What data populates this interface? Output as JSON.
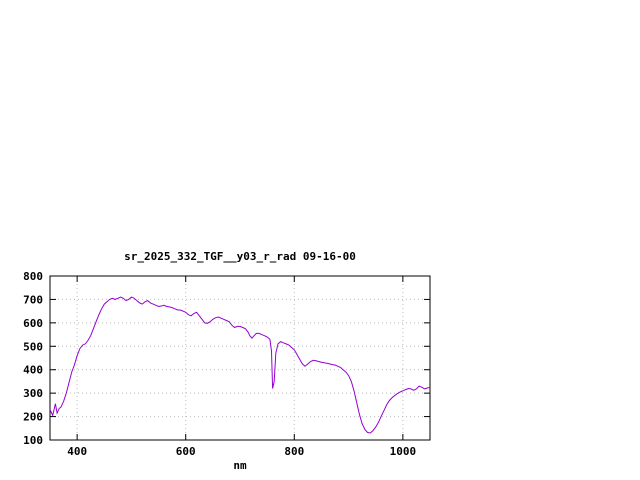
{
  "window": {
    "background": "#ffffff"
  },
  "chart_data": {
    "type": "line",
    "title": "sr_2025_332_TGF__y03_r_rad 09-16-00",
    "xlabel": "nm",
    "ylabel": "",
    "xlim": [
      350,
      1050
    ],
    "ylim": [
      100,
      800
    ],
    "xticks": [
      400,
      600,
      800,
      1000
    ],
    "yticks": [
      100,
      200,
      300,
      400,
      500,
      600,
      700,
      800
    ],
    "grid": true,
    "legend": "none",
    "axis_color": "#000000",
    "grid_color": "#bbbbbb",
    "series": [
      {
        "name": "",
        "color": "#9400d3",
        "x": [
          350,
          355,
          360,
          363,
          367,
          370,
          375,
          380,
          385,
          390,
          395,
          400,
          405,
          410,
          415,
          420,
          425,
          430,
          435,
          440,
          445,
          450,
          455,
          460,
          465,
          470,
          475,
          480,
          485,
          490,
          495,
          500,
          505,
          510,
          515,
          520,
          525,
          530,
          535,
          540,
          545,
          550,
          555,
          560,
          565,
          570,
          575,
          580,
          585,
          590,
          595,
          600,
          605,
          610,
          615,
          620,
          625,
          630,
          635,
          640,
          645,
          650,
          655,
          660,
          665,
          670,
          675,
          680,
          685,
          690,
          695,
          700,
          705,
          710,
          715,
          718,
          722,
          726,
          730,
          735,
          740,
          745,
          750,
          755,
          758,
          760,
          763,
          766,
          770,
          775,
          780,
          785,
          790,
          795,
          800,
          805,
          810,
          815,
          820,
          825,
          830,
          835,
          840,
          845,
          850,
          855,
          860,
          865,
          870,
          875,
          880,
          885,
          890,
          895,
          900,
          905,
          910,
          915,
          920,
          925,
          930,
          935,
          940,
          945,
          950,
          955,
          960,
          965,
          970,
          975,
          980,
          985,
          990,
          995,
          1000,
          1005,
          1010,
          1015,
          1020,
          1025,
          1030,
          1035,
          1040,
          1045,
          1050
        ],
        "y": [
          230,
          205,
          255,
          215,
          235,
          240,
          265,
          300,
          345,
          390,
          420,
          460,
          490,
          505,
          510,
          525,
          545,
          575,
          605,
          635,
          660,
          680,
          690,
          700,
          705,
          700,
          705,
          710,
          705,
          695,
          700,
          710,
          705,
          695,
          685,
          680,
          690,
          695,
          685,
          680,
          675,
          670,
          672,
          675,
          670,
          668,
          665,
          660,
          655,
          655,
          650,
          645,
          635,
          630,
          640,
          645,
          630,
          615,
          600,
          598,
          605,
          615,
          622,
          625,
          620,
          615,
          610,
          605,
          590,
          580,
          585,
          585,
          580,
          575,
          560,
          545,
          535,
          545,
          555,
          555,
          550,
          545,
          540,
          530,
          480,
          320,
          350,
          470,
          510,
          520,
          515,
          510,
          505,
          495,
          485,
          465,
          445,
          425,
          415,
          425,
          435,
          440,
          438,
          435,
          432,
          430,
          428,
          425,
          422,
          420,
          415,
          410,
          400,
          390,
          375,
          350,
          310,
          260,
          210,
          170,
          145,
          132,
          130,
          140,
          155,
          175,
          200,
          225,
          250,
          268,
          280,
          290,
          298,
          305,
          310,
          315,
          320,
          318,
          312,
          318,
          330,
          325,
          318,
          322,
          325
        ]
      }
    ]
  }
}
